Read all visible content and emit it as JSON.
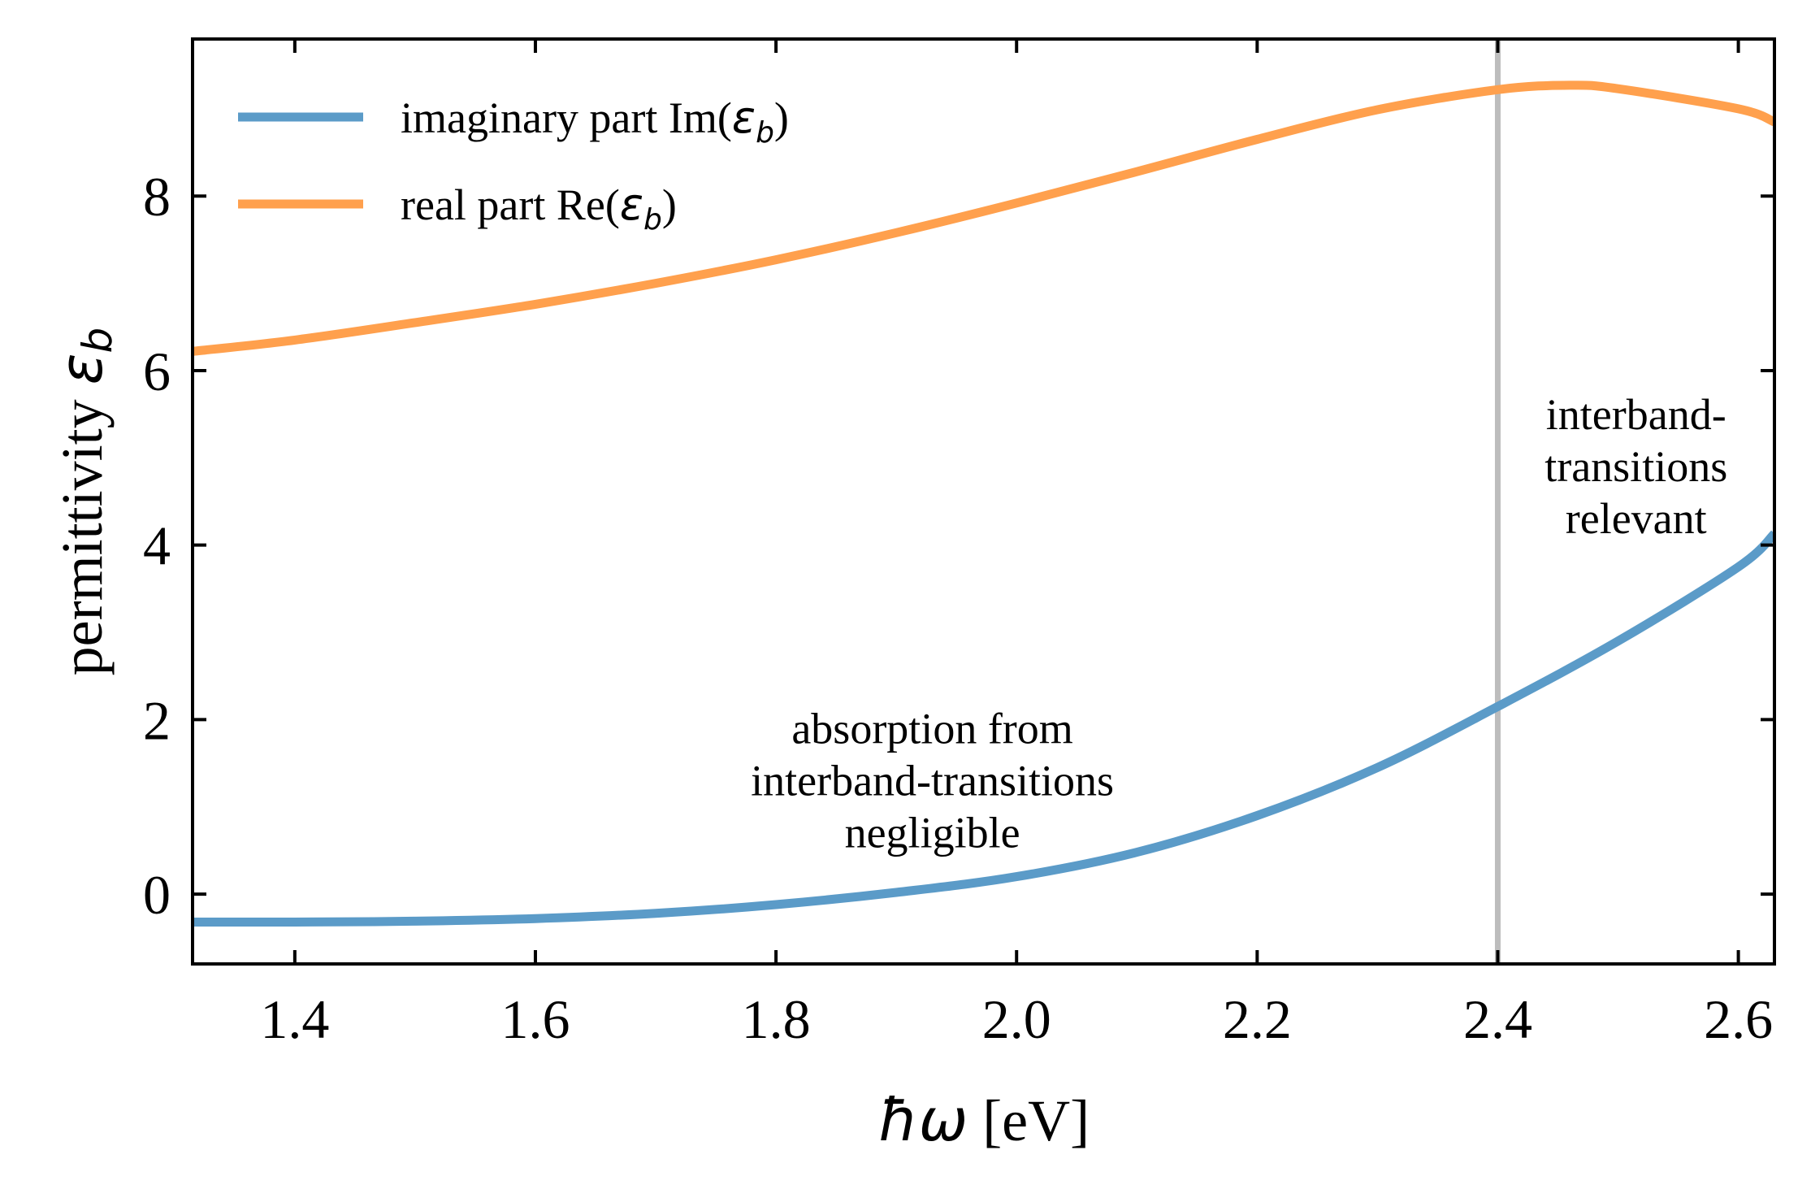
{
  "chart_data": {
    "type": "line",
    "title": "",
    "xlabel_symbol": "ħω",
    "xlabel_unit": "[eV]",
    "ylabel_prefix": "permittivity",
    "ylabel_symbol": "ε",
    "ylabel_subscript": "b",
    "xlim": [
      1.315,
      2.63
    ],
    "ylim": [
      -0.8,
      9.8
    ],
    "xticks": [
      1.4,
      1.6,
      1.8,
      2.0,
      2.2,
      2.4,
      2.6
    ],
    "xtick_labels": [
      "1.4",
      "1.6",
      "1.8",
      "2.0",
      "2.2",
      "2.4",
      "2.6"
    ],
    "yticks": [
      0,
      2,
      4,
      6,
      8
    ],
    "ytick_labels": [
      "0",
      "2",
      "4",
      "6",
      "8"
    ],
    "grid": false,
    "legend_position": "top-left",
    "vline": {
      "x": 2.4,
      "color": "#bdbdbd"
    },
    "series": [
      {
        "name_prefix": "imaginary part Im(",
        "name_symbol": "ε",
        "name_subscript": "b",
        "name_suffix": ")",
        "color": "#5b9bc8",
        "x": [
          1.315,
          1.4,
          1.5,
          1.6,
          1.7,
          1.8,
          1.9,
          2.0,
          2.1,
          2.2,
          2.3,
          2.4,
          2.5,
          2.6,
          2.63
        ],
        "y": [
          -0.32,
          -0.32,
          -0.31,
          -0.28,
          -0.22,
          -0.12,
          0.02,
          0.2,
          0.48,
          0.9,
          1.45,
          2.15,
          2.9,
          3.75,
          4.13
        ]
      },
      {
        "name_prefix": "real part Re(",
        "name_symbol": "ε",
        "name_subscript": "b",
        "name_suffix": ")",
        "color": "#ffa04d",
        "x": [
          1.315,
          1.4,
          1.5,
          1.6,
          1.7,
          1.8,
          1.9,
          2.0,
          2.1,
          2.2,
          2.3,
          2.4,
          2.46,
          2.5,
          2.6,
          2.63
        ],
        "y": [
          6.22,
          6.35,
          6.55,
          6.76,
          7.0,
          7.27,
          7.58,
          7.92,
          8.28,
          8.65,
          8.99,
          9.22,
          9.27,
          9.23,
          9.0,
          8.85
        ]
      }
    ],
    "annotations": [
      {
        "lines": [
          "absorption from",
          "interband-transitions",
          "negligible"
        ],
        "x": 1.93,
        "y": 1.3
      },
      {
        "lines": [
          "interband-",
          "transitions",
          "relevant"
        ],
        "x": 2.515,
        "y": 4.9
      }
    ]
  }
}
